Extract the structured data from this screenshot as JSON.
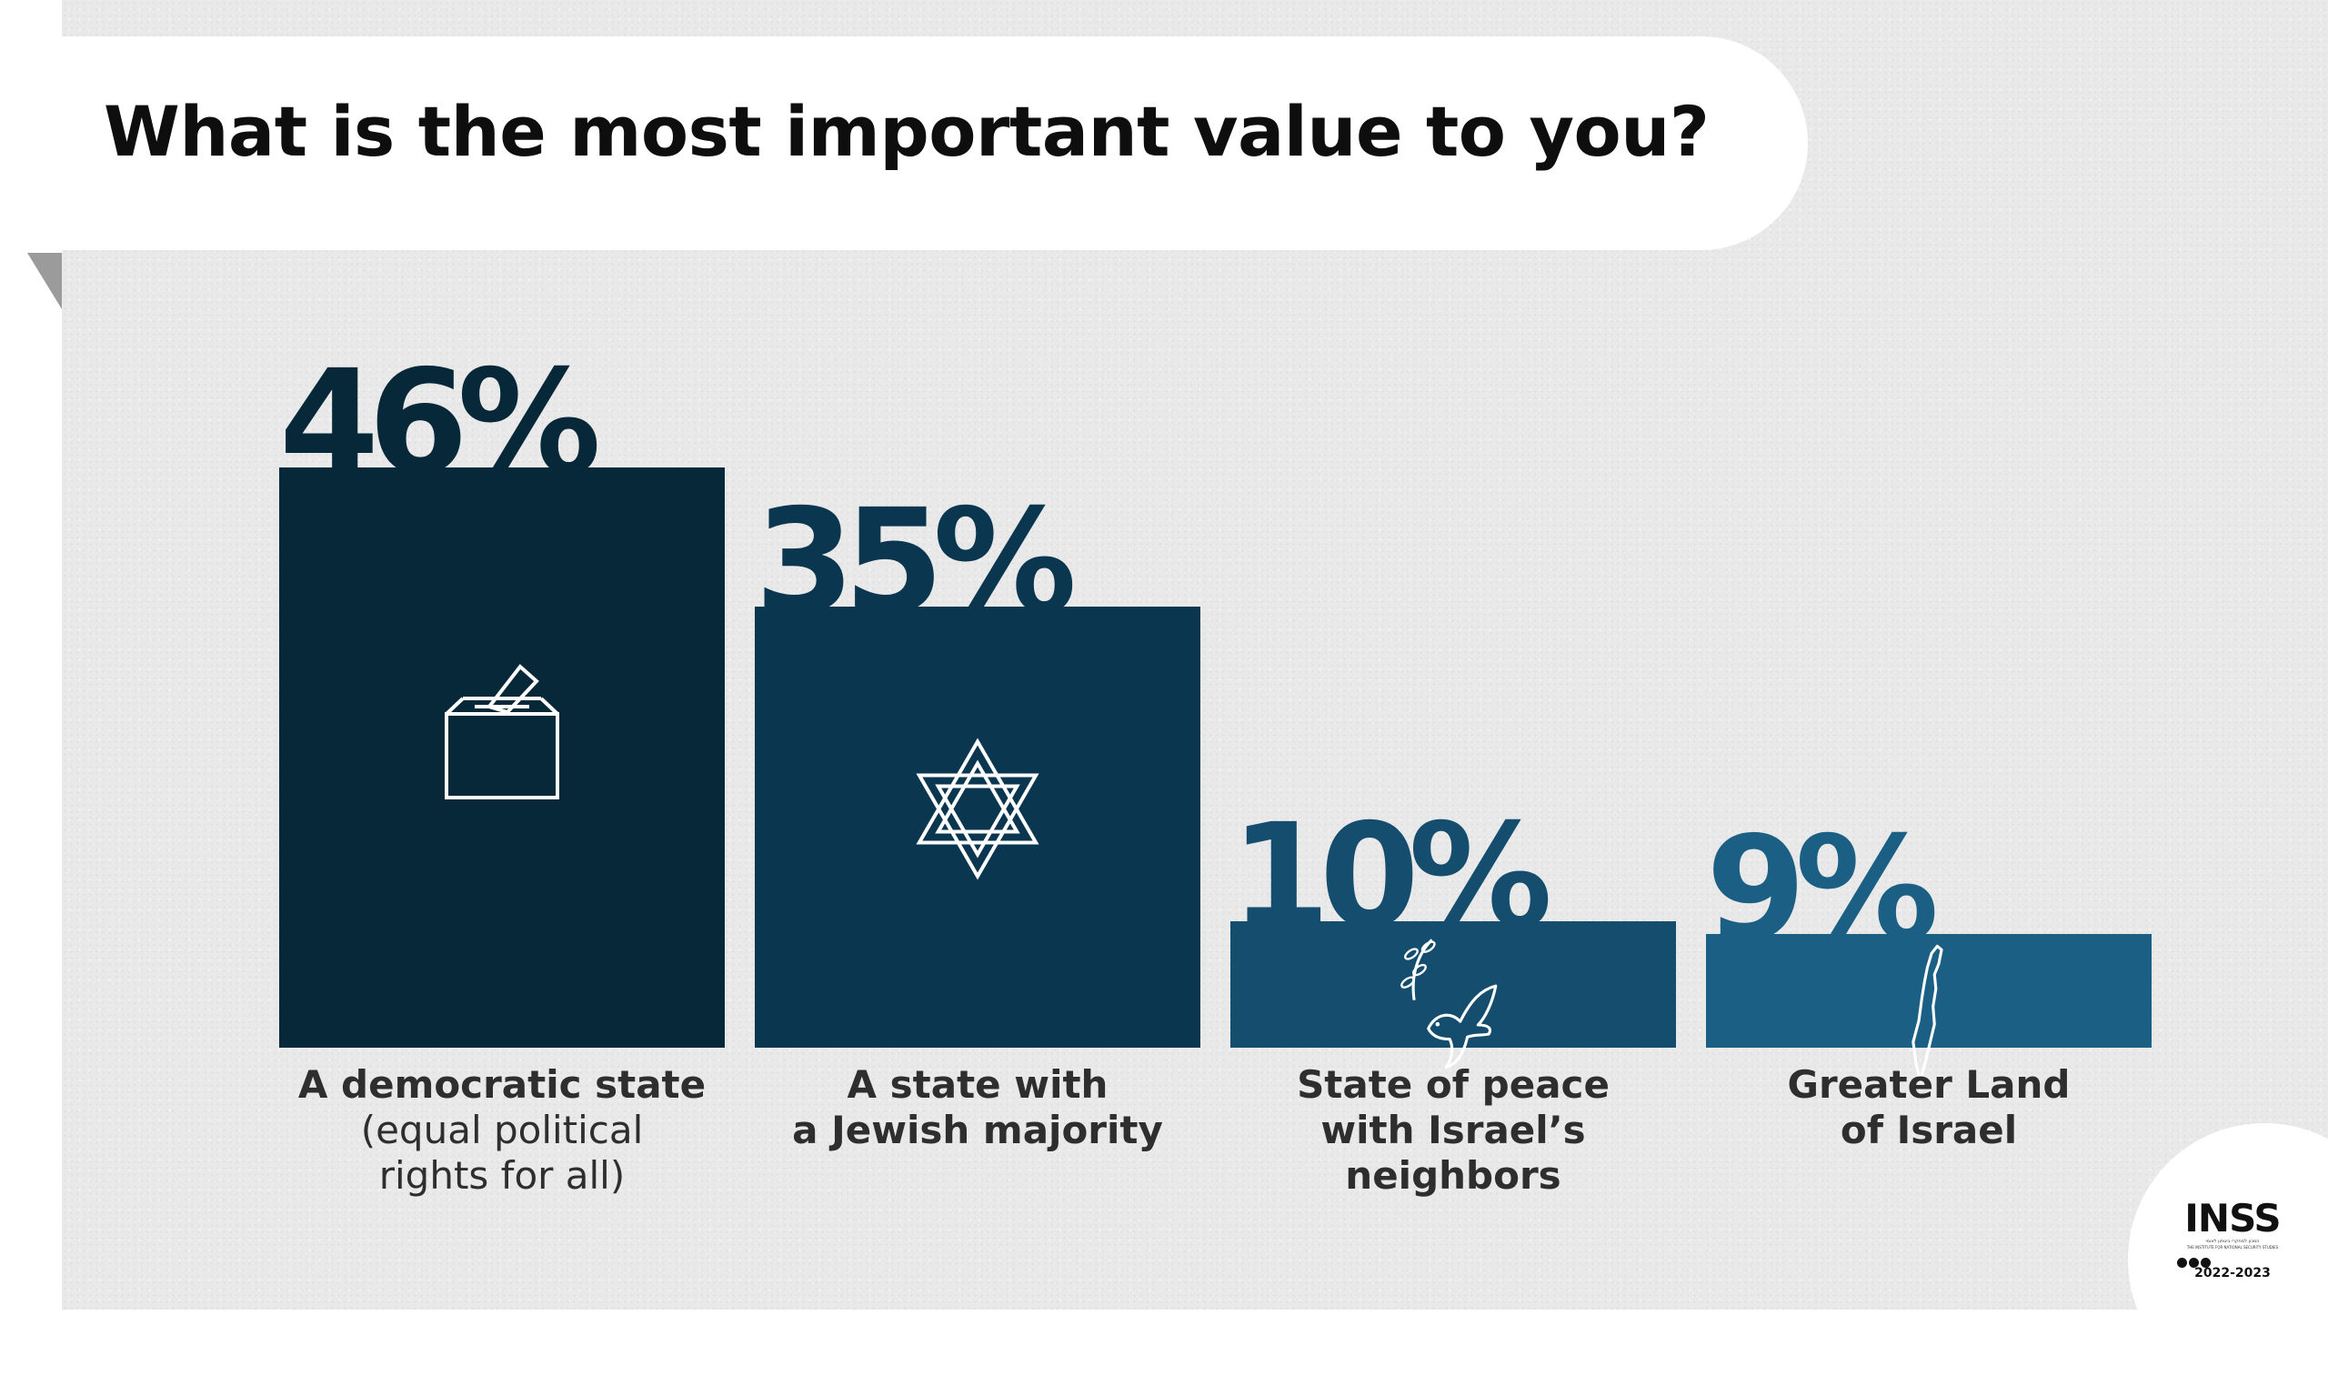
{
  "title": "What is the most important value to you?",
  "chart_data": {
    "type": "bar",
    "categories": [
      "A democratic state (equal political rights for all)",
      "A state with a Jewish majority",
      "State of peace with Israel’s neighbors",
      "Greater Land of Israel"
    ],
    "values": [
      46,
      35,
      10,
      9
    ],
    "value_labels": [
      "46%",
      "35%",
      "10%",
      "9%"
    ],
    "label_lines": [
      {
        "bold": [
          "A democratic state"
        ],
        "normal": [
          "(equal political",
          "rights for all)"
        ]
      },
      {
        "bold": [
          "A state with",
          "a Jewish majority"
        ],
        "normal": []
      },
      {
        "bold": [
          "State of peace",
          "with Israel’s neighbors"
        ],
        "normal": []
      },
      {
        "bold": [
          "Greater Land",
          "of Israel"
        ],
        "normal": []
      }
    ],
    "icons": [
      "ballot-box-icon",
      "star-of-david-icon",
      "dove-olive-branch-icon",
      "israel-map-icon"
    ],
    "colors": [
      "#062838",
      "#0b3650",
      "#144d6d",
      "#1b5f85"
    ],
    "ylim": [
      0,
      46
    ],
    "grid": false,
    "legend": "none"
  },
  "logo": {
    "name": "INSS",
    "hebrew": "המכון למחקרי ביטחון לאומי",
    "english": "THE INSTITUTE FOR NATIONAL SECURITY STUDIES",
    "year": "2022-2023"
  }
}
